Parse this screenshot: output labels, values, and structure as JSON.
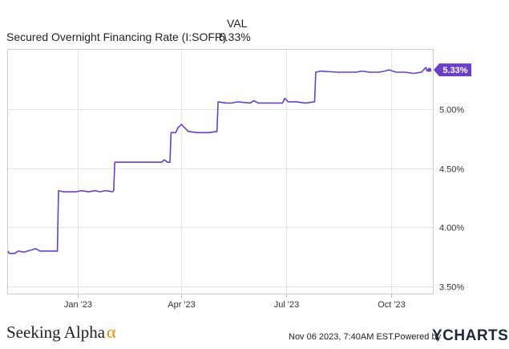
{
  "header": {
    "val_heading": "VAL",
    "series_label": "Secured Overnight Financing Rate (I:SOFR)",
    "series_value": "5.33%"
  },
  "footer": {
    "brand_name": "Seeking Alpha",
    "brand_symbol": "α",
    "timestamp": "Nov 06 2023, 7:40AM EST.",
    "powered_by": "Powered by",
    "ycharts_logo": "YCHARTS"
  },
  "colors": {
    "line": "#6a3fc7",
    "badge_bg": "#6a3fc7",
    "badge_text": "#ffffff",
    "grid": "#e4e4e4",
    "border": "#cccccc",
    "brand_alpha": "#f08a00"
  },
  "chart_data": {
    "type": "line",
    "title": "",
    "xlabel": "",
    "ylabel": "",
    "x_ticks": [
      {
        "label": "Jan '23",
        "date": "2023-01-01"
      },
      {
        "label": "Apr '23",
        "date": "2023-04-01"
      },
      {
        "label": "Jul '23",
        "date": "2023-07-01"
      },
      {
        "label": "Oct '23",
        "date": "2023-10-01"
      }
    ],
    "y_ticks": [
      {
        "label": "3.50%",
        "value": 3.5
      },
      {
        "label": "4.00%",
        "value": 4.0
      },
      {
        "label": "4.50%",
        "value": 4.5
      },
      {
        "label": "5.00%",
        "value": 5.0
      }
    ],
    "xlim": [
      "2022-11-01",
      "2023-11-06"
    ],
    "ylim": [
      3.44,
      5.5
    ],
    "grid": true,
    "last_value_label": "5.33%",
    "series": [
      {
        "name": "Secured Overnight Financing Rate (I:SOFR)",
        "points": [
          [
            "2022-11-01",
            3.8
          ],
          [
            "2022-11-02",
            3.78
          ],
          [
            "2022-11-07",
            3.78
          ],
          [
            "2022-11-10",
            3.8
          ],
          [
            "2022-11-15",
            3.79
          ],
          [
            "2022-11-18",
            3.8
          ],
          [
            "2022-11-22",
            3.81
          ],
          [
            "2022-11-25",
            3.82
          ],
          [
            "2022-11-29",
            3.8
          ],
          [
            "2022-12-07",
            3.8
          ],
          [
            "2022-12-14",
            3.8
          ],
          [
            "2022-12-15",
            4.31
          ],
          [
            "2022-12-19",
            4.3
          ],
          [
            "2022-12-30",
            4.3
          ],
          [
            "2023-01-04",
            4.31
          ],
          [
            "2023-01-10",
            4.3
          ],
          [
            "2023-01-16",
            4.31
          ],
          [
            "2023-01-20",
            4.3
          ],
          [
            "2023-01-25",
            4.31
          ],
          [
            "2023-01-31",
            4.3
          ],
          [
            "2023-02-01",
            4.31
          ],
          [
            "2023-02-02",
            4.55
          ],
          [
            "2023-02-15",
            4.55
          ],
          [
            "2023-03-01",
            4.55
          ],
          [
            "2023-03-15",
            4.55
          ],
          [
            "2023-03-17",
            4.57
          ],
          [
            "2023-03-20",
            4.55
          ],
          [
            "2023-03-22",
            4.55
          ],
          [
            "2023-03-23",
            4.8
          ],
          [
            "2023-03-27",
            4.8
          ],
          [
            "2023-03-29",
            4.84
          ],
          [
            "2023-04-01",
            4.87
          ],
          [
            "2023-04-04",
            4.84
          ],
          [
            "2023-04-07",
            4.81
          ],
          [
            "2023-04-15",
            4.8
          ],
          [
            "2023-04-25",
            4.8
          ],
          [
            "2023-05-02",
            4.81
          ],
          [
            "2023-05-03",
            5.06
          ],
          [
            "2023-05-10",
            5.05
          ],
          [
            "2023-05-15",
            5.05
          ],
          [
            "2023-05-20",
            5.06
          ],
          [
            "2023-05-31",
            5.05
          ],
          [
            "2023-06-03",
            5.07
          ],
          [
            "2023-06-07",
            5.05
          ],
          [
            "2023-06-14",
            5.05
          ],
          [
            "2023-06-28",
            5.05
          ],
          [
            "2023-06-30",
            5.09
          ],
          [
            "2023-07-03",
            5.06
          ],
          [
            "2023-07-10",
            5.06
          ],
          [
            "2023-07-18",
            5.05
          ],
          [
            "2023-07-26",
            5.06
          ],
          [
            "2023-07-27",
            5.31
          ],
          [
            "2023-07-31",
            5.32
          ],
          [
            "2023-08-15",
            5.31
          ],
          [
            "2023-08-31",
            5.31
          ],
          [
            "2023-09-05",
            5.32
          ],
          [
            "2023-09-12",
            5.31
          ],
          [
            "2023-09-20",
            5.31
          ],
          [
            "2023-09-25",
            5.32
          ],
          [
            "2023-09-29",
            5.33
          ],
          [
            "2023-10-02",
            5.32
          ],
          [
            "2023-10-05",
            5.31
          ],
          [
            "2023-10-13",
            5.31
          ],
          [
            "2023-10-20",
            5.3
          ],
          [
            "2023-10-27",
            5.31
          ],
          [
            "2023-10-31",
            5.35
          ],
          [
            "2023-11-01",
            5.32
          ],
          [
            "2023-11-03",
            5.33
          ]
        ]
      }
    ]
  }
}
